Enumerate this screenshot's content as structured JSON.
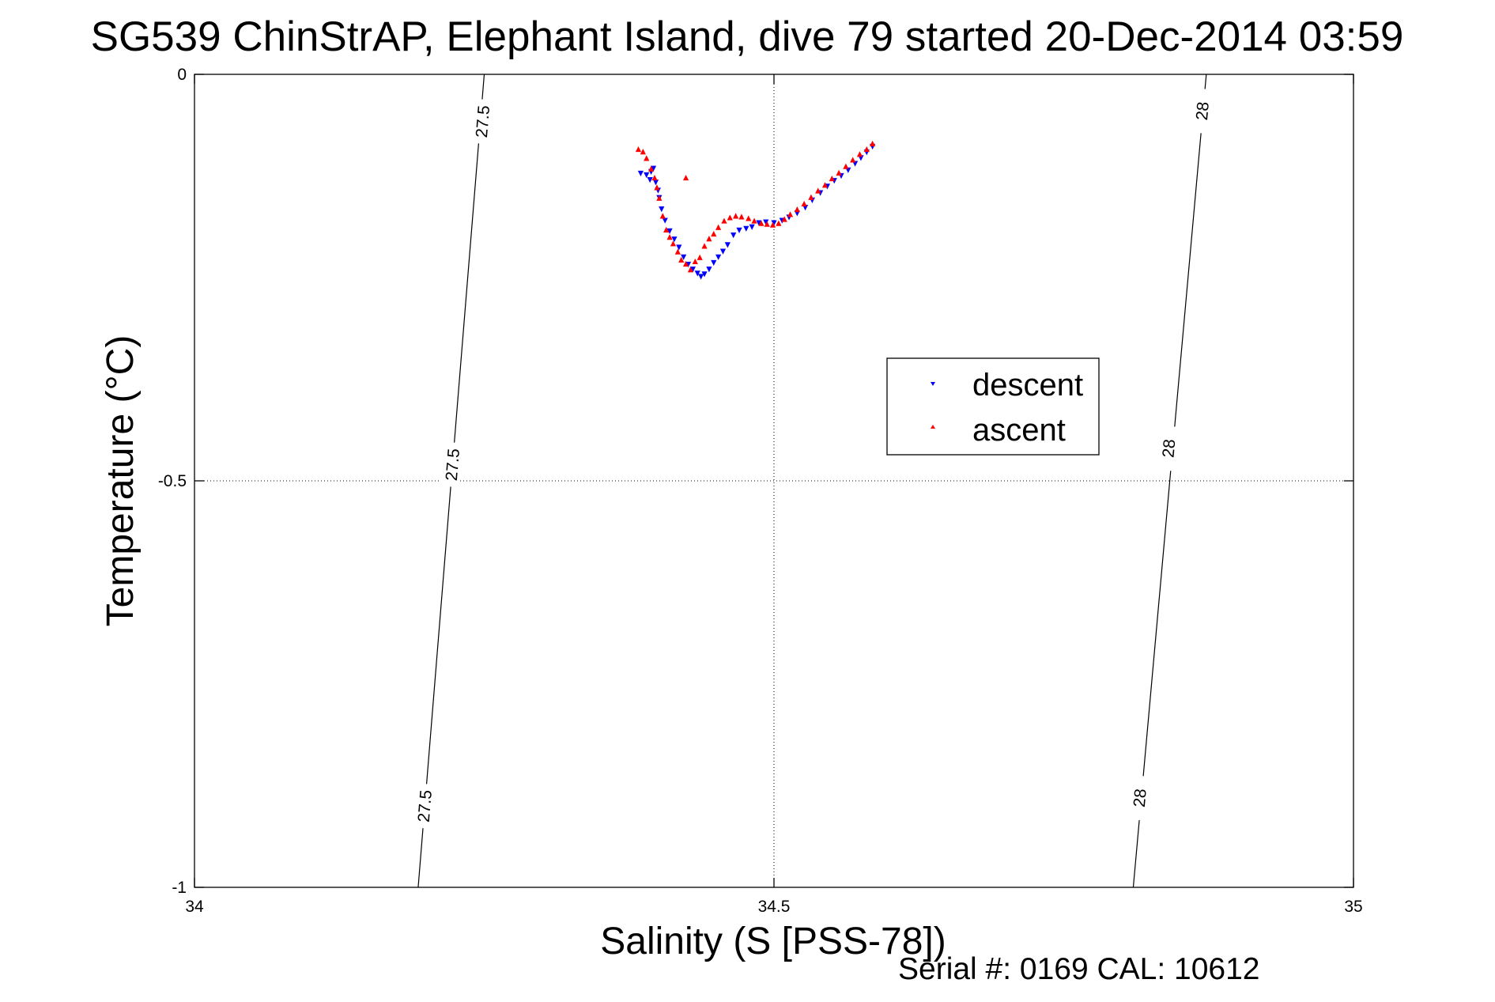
{
  "chart_data": {
    "type": "scatter",
    "title": "SG539 ChinStrAP, Elephant Island, dive 79 started 20-Dec-2014 03:59",
    "xlabel": "Salinity (S [PSS-78])",
    "ylabel": "Temperature (°C)",
    "xlim": [
      34,
      35
    ],
    "ylim": [
      -1,
      0
    ],
    "x_ticks": [
      34,
      34.5,
      35
    ],
    "x_tick_labels": [
      "34",
      "34.5",
      "35"
    ],
    "y_ticks": [
      0,
      -0.5,
      -1
    ],
    "y_tick_labels": [
      "0",
      "-0.5",
      "-1"
    ],
    "grid": true,
    "legend": {
      "position": "inside-right",
      "entries": [
        {
          "label": "descent",
          "color": "#0000ff",
          "marker": "down-triangle"
        },
        {
          "label": "ascent",
          "color": "#ff0000",
          "marker": "up-triangle"
        }
      ]
    },
    "footnote": "Serial #: 0169 CAL: 10612",
    "isopycnals": [
      {
        "label": "27.5",
        "points": [
          [
            34.25,
            0
          ],
          [
            34.193,
            -1
          ]
        ],
        "label_positions": [
          [
            34.248,
            -0.058
          ],
          [
            34.222,
            -0.48
          ],
          [
            34.198,
            -0.9
          ]
        ]
      },
      {
        "label": "28",
        "points": [
          [
            34.873,
            0
          ],
          [
            34.81,
            -1
          ]
        ],
        "label_positions": [
          [
            34.869,
            -0.045
          ],
          [
            34.84,
            -0.46
          ],
          [
            34.815,
            -0.89
          ]
        ]
      }
    ],
    "series": [
      {
        "name": "descent",
        "color": "#0000ff",
        "marker": "down-triangle",
        "points": [
          [
            34.385,
            -0.122
          ],
          [
            34.39,
            -0.124
          ],
          [
            34.394,
            -0.12
          ],
          [
            34.396,
            -0.116
          ],
          [
            34.393,
            -0.13
          ],
          [
            34.398,
            -0.133
          ],
          [
            34.4,
            -0.143
          ],
          [
            34.401,
            -0.152
          ],
          [
            34.403,
            -0.166
          ],
          [
            34.406,
            -0.18
          ],
          [
            34.41,
            -0.193
          ],
          [
            34.414,
            -0.203
          ],
          [
            34.418,
            -0.213
          ],
          [
            34.422,
            -0.225
          ],
          [
            34.426,
            -0.234
          ],
          [
            34.43,
            -0.24
          ],
          [
            34.434,
            -0.245
          ],
          [
            34.437,
            -0.249
          ],
          [
            34.44,
            -0.246
          ],
          [
            34.444,
            -0.24
          ],
          [
            34.448,
            -0.232
          ],
          [
            34.452,
            -0.225
          ],
          [
            34.456,
            -0.218
          ],
          [
            34.46,
            -0.21
          ],
          [
            34.465,
            -0.198
          ],
          [
            34.47,
            -0.192
          ],
          [
            34.476,
            -0.19
          ],
          [
            34.481,
            -0.188
          ],
          [
            34.487,
            -0.183
          ],
          [
            34.493,
            -0.182
          ],
          [
            34.5,
            -0.183
          ],
          [
            34.507,
            -0.18
          ],
          [
            34.513,
            -0.176
          ],
          [
            34.52,
            -0.171
          ],
          [
            34.527,
            -0.164
          ],
          [
            34.533,
            -0.155
          ],
          [
            34.54,
            -0.146
          ],
          [
            34.546,
            -0.138
          ],
          [
            34.552,
            -0.131
          ],
          [
            34.558,
            -0.125
          ],
          [
            34.564,
            -0.118
          ],
          [
            34.57,
            -0.11
          ],
          [
            34.575,
            -0.103
          ],
          [
            34.58,
            -0.096
          ],
          [
            34.585,
            -0.089
          ]
        ]
      },
      {
        "name": "ascent",
        "color": "#ff0000",
        "marker": "up-triangle",
        "points": [
          [
            34.383,
            -0.092
          ],
          [
            34.387,
            -0.095
          ],
          [
            34.39,
            -0.103
          ],
          [
            34.394,
            -0.116
          ],
          [
            34.397,
            -0.127
          ],
          [
            34.399,
            -0.139
          ],
          [
            34.401,
            -0.152
          ],
          [
            34.404,
            -0.174
          ],
          [
            34.407,
            -0.191
          ],
          [
            34.41,
            -0.2
          ],
          [
            34.413,
            -0.208
          ],
          [
            34.417,
            -0.218
          ],
          [
            34.42,
            -0.228
          ],
          [
            34.424,
            -0.233
          ],
          [
            34.428,
            -0.24
          ],
          [
            34.432,
            -0.23
          ],
          [
            34.436,
            -0.225
          ],
          [
            34.44,
            -0.211
          ],
          [
            34.444,
            -0.202
          ],
          [
            34.448,
            -0.196
          ],
          [
            34.452,
            -0.188
          ],
          [
            34.457,
            -0.18
          ],
          [
            34.462,
            -0.176
          ],
          [
            34.467,
            -0.174
          ],
          [
            34.472,
            -0.175
          ],
          [
            34.478,
            -0.177
          ],
          [
            34.483,
            -0.18
          ],
          [
            34.489,
            -0.183
          ],
          [
            34.494,
            -0.184
          ],
          [
            34.499,
            -0.185
          ],
          [
            34.504,
            -0.183
          ],
          [
            34.509,
            -0.178
          ],
          [
            34.514,
            -0.172
          ],
          [
            34.52,
            -0.166
          ],
          [
            34.526,
            -0.159
          ],
          [
            34.532,
            -0.151
          ],
          [
            34.538,
            -0.143
          ],
          [
            34.544,
            -0.136
          ],
          [
            34.55,
            -0.128
          ],
          [
            34.556,
            -0.121
          ],
          [
            34.562,
            -0.113
          ],
          [
            34.568,
            -0.105
          ],
          [
            34.574,
            -0.098
          ],
          [
            34.58,
            -0.092
          ],
          [
            34.585,
            -0.085
          ],
          [
            34.424,
            -0.127
          ]
        ]
      }
    ]
  }
}
